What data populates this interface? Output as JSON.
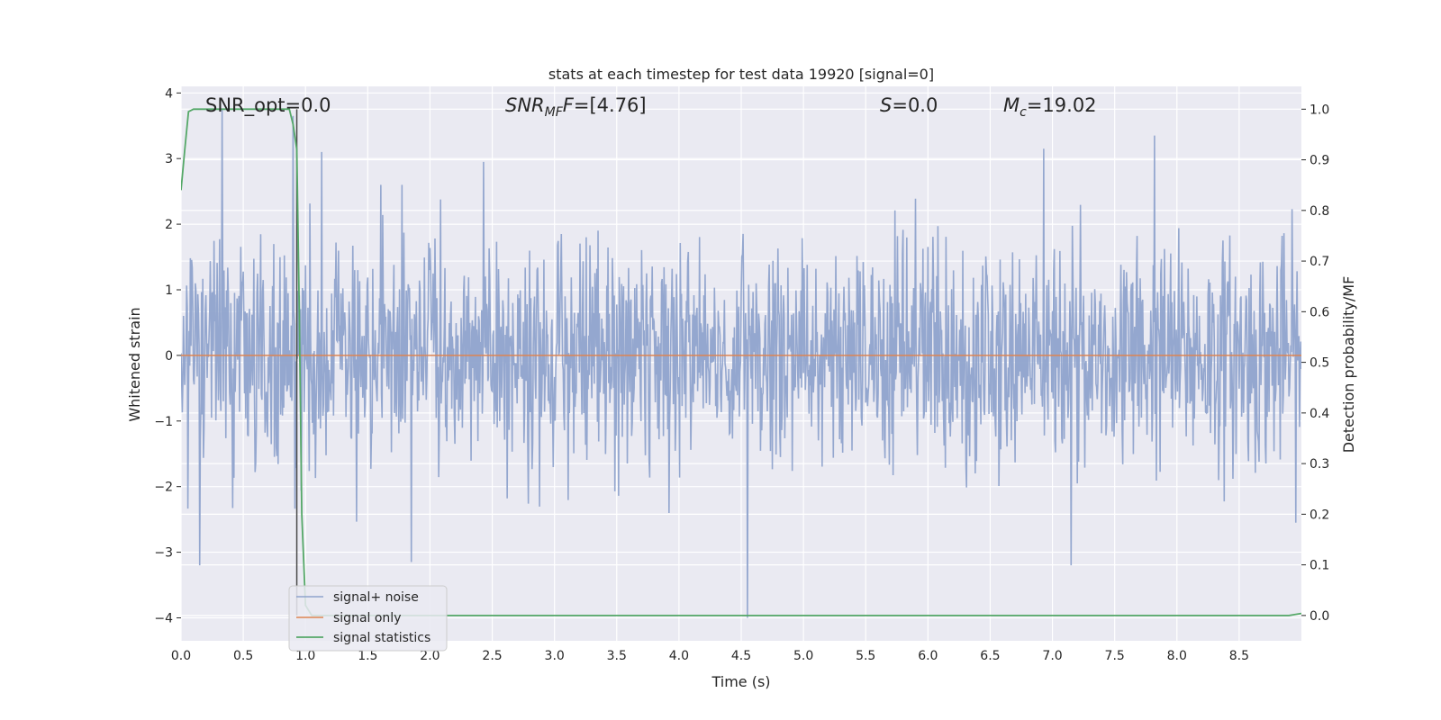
{
  "chart_data": {
    "type": "line",
    "title": "stats at each timestep for test data 19920 [signal=0]",
    "xlabel": "Time (s)",
    "ylabel": "Whitened strain",
    "y2label": "Detection probability/MF",
    "xlim": [
      0.0,
      9.0
    ],
    "ylim": [
      -4.35,
      4.1
    ],
    "y2lim": [
      -0.05,
      1.045
    ],
    "x_ticks": [
      "0.0",
      "0.5",
      "1.0",
      "1.5",
      "2.0",
      "2.5",
      "3.0",
      "3.5",
      "4.0",
      "4.5",
      "5.0",
      "5.5",
      "6.0",
      "6.5",
      "7.0",
      "7.5",
      "8.0",
      "8.5"
    ],
    "y_ticks": [
      "4",
      "3",
      "2",
      "1",
      "0",
      "−1",
      "−2",
      "−3",
      "−4"
    ],
    "y2_ticks": [
      "1.0",
      "0.9",
      "0.8",
      "0.7",
      "0.6",
      "0.5",
      "0.4",
      "0.3",
      "0.2",
      "0.1",
      "0.0"
    ],
    "grid": true,
    "legend_position": "lower-left",
    "annotations": {
      "snr_opt": "SNR_opt=0.0",
      "snr_mf_main": "SNR",
      "snr_mf_sub": "MF",
      "snr_mf_value": "=[4.76]",
      "s_main": "S",
      "s_value": "=0.0",
      "mc_main": "M",
      "mc_sub": "c",
      "mc_value": "=19.02"
    },
    "detection_marker_x": 0.93,
    "series": [
      {
        "name": "signal+ noise",
        "color": "#8fa3cc",
        "axis": "left",
        "description_values": {
          "sample_rate_per_s": 200,
          "typical_abs_max": 2.0,
          "peaks": [
            [
              0.33,
              3.75
            ],
            [
              0.9,
              3.65
            ],
            [
              1.13,
              3.1
            ],
            [
              2.43,
              2.95
            ],
            [
              7.82,
              3.35
            ],
            [
              6.93,
              3.15
            ],
            [
              4.55,
              -4.0
            ],
            [
              0.15,
              -3.2
            ],
            [
              1.85,
              -3.15
            ],
            [
              7.15,
              -3.2
            ]
          ]
        }
      },
      {
        "name": "signal only",
        "color": "#dd8452",
        "axis": "left",
        "x": [
          0.0,
          9.0
        ],
        "y": [
          0.0,
          0.0
        ]
      },
      {
        "name": "signal statistics",
        "color": "#55a868",
        "axis": "right",
        "x": [
          0.0,
          0.03,
          0.06,
          0.1,
          0.2,
          0.4,
          0.6,
          0.8,
          0.87,
          0.9,
          0.93,
          0.95,
          0.97,
          1.0,
          1.05,
          1.2,
          2.0,
          4.0,
          6.0,
          8.0,
          8.9,
          8.95,
          9.0
        ],
        "y": [
          0.84,
          0.92,
          0.995,
          1.0,
          1.0,
          1.0,
          1.0,
          1.0,
          1.0,
          0.97,
          0.92,
          0.6,
          0.2,
          0.02,
          0.0,
          0.0,
          0.0,
          0.0,
          0.0,
          0.0,
          0.0,
          0.002,
          0.004
        ]
      }
    ]
  }
}
